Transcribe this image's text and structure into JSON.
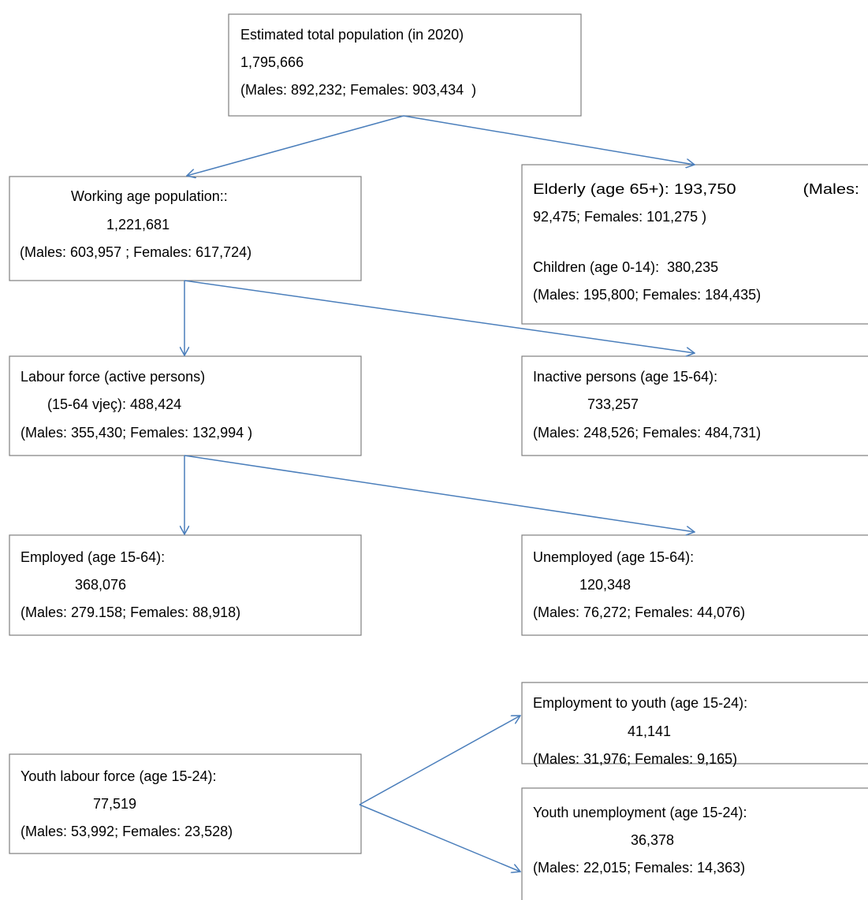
{
  "nodes": [
    {
      "lines": [
        "Estimated total population (in 2020)",
        "1,795,666",
        "(Males: 892,232; Females: 903,434  )"
      ]
    },
    {
      "lines": [
        "Working age population::",
        "1,221,681",
        "(Males: 603,957 ; Females: 617,724)"
      ]
    },
    {
      "lines": [
        "Elderly (age 65+): 193,750              (Males:",
        "92,475; Females: 101,275 )",
        "Children (age 0-14):  380,235",
        "(Males: 195,800; Females: 184,435)"
      ]
    },
    {
      "lines": [
        "Labour force (active persons)",
        "(15-64 vjeç): 488,424",
        "(Males: 355,430; Females: 132,994 )"
      ]
    },
    {
      "lines": [
        "Inactive persons (age 15-64):",
        "733,257",
        "(Males: 248,526; Females: 484,731)"
      ]
    },
    {
      "lines": [
        "Employed (age 15-64):",
        "368,076",
        "(Males: 279.158; Females: 88,918)"
      ]
    },
    {
      "lines": [
        "Unemployed (age 15-64):",
        "120,348",
        "(Males: 76,272; Females: 44,076)"
      ]
    },
    {
      "lines": [
        "Youth labour force (age 15-24):",
        "77,519",
        "(Males: 53,992; Females: 23,528)"
      ]
    },
    {
      "lines": [
        "Employment to youth (age 15-24):",
        "41,141",
        "(Males: 31,976; Females: 9,165)"
      ]
    },
    {
      "lines": [
        "Youth unemployment (age 15-24):",
        "36,378",
        "(Males: 22,015; Females: 14,363)"
      ]
    }
  ]
}
